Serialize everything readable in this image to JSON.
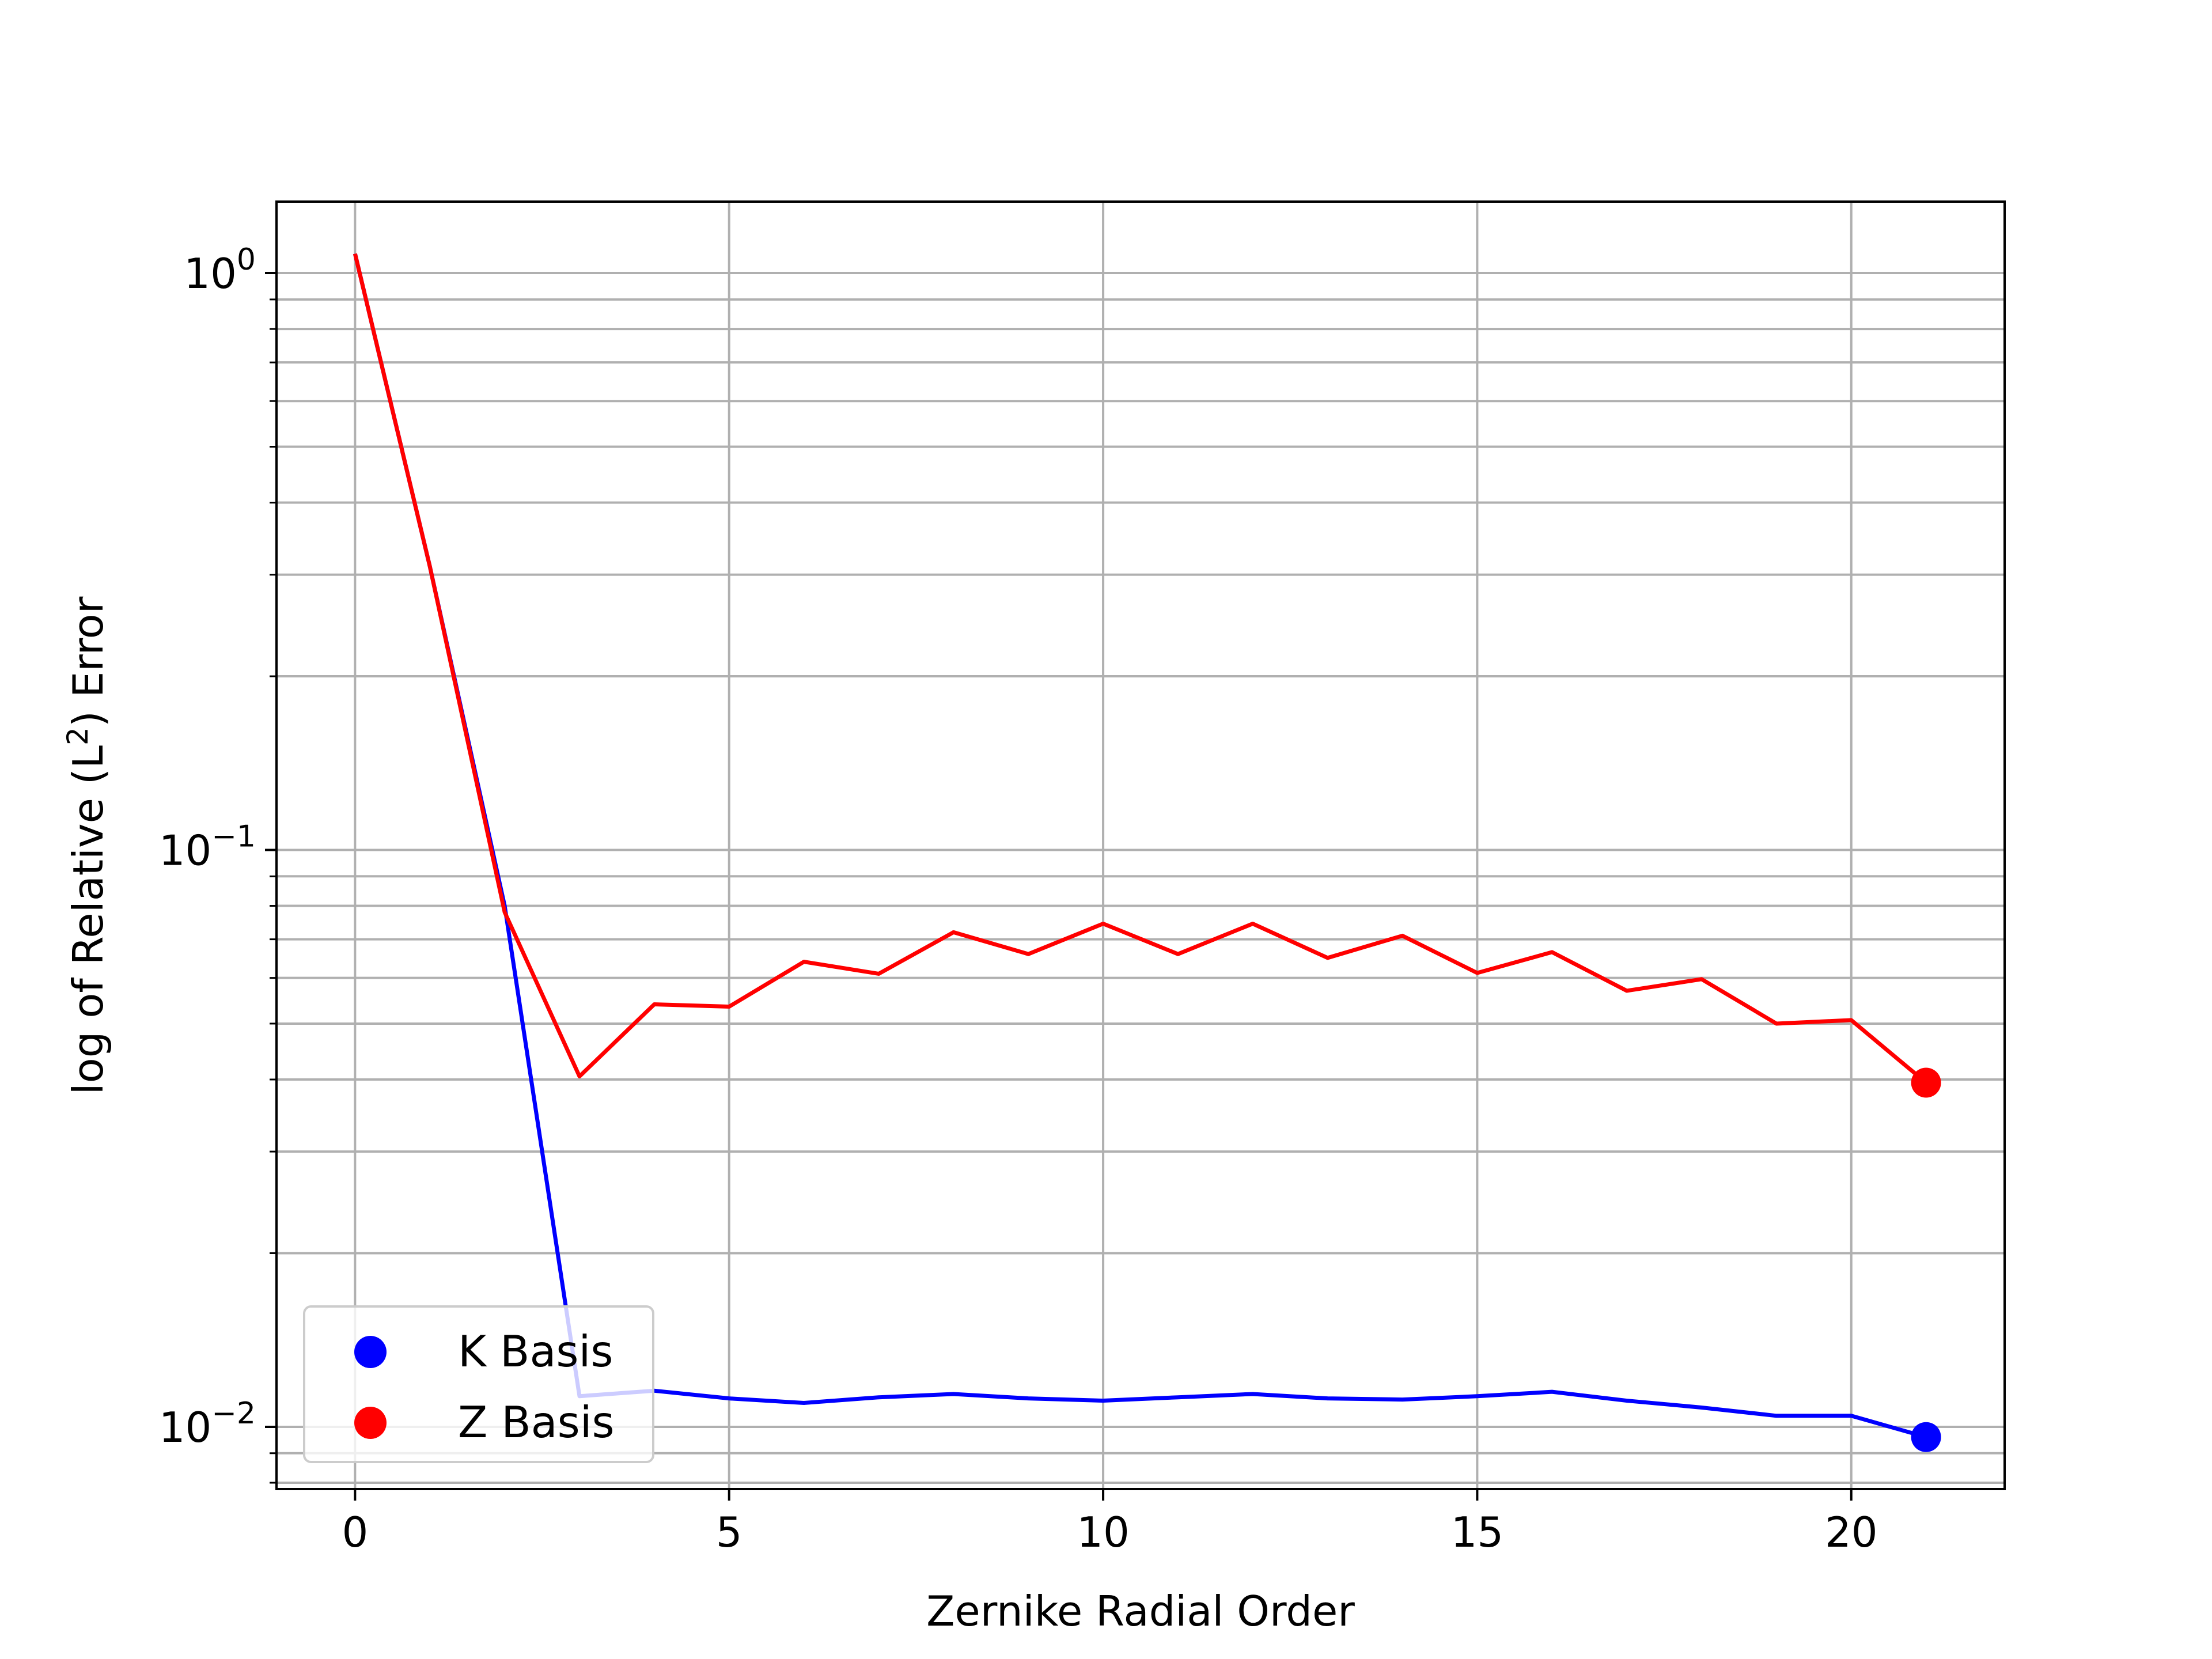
{
  "chart_data": {
    "type": "line",
    "title": "",
    "xlabel": "Zernike Radial Order",
    "ylabel_parts": {
      "prefix": "log of Relative (L",
      "superscript": "2",
      "suffix": ") Error"
    },
    "xlim": [
      -1.05,
      22.05
    ],
    "ylim": [
      0.0078,
      1.33
    ],
    "yscale": "log",
    "grid": true,
    "legend_placement": "lower-left",
    "x_ticks": [
      {
        "value": 0,
        "label": "0"
      },
      {
        "value": 5,
        "label": "5"
      },
      {
        "value": 10,
        "label": "10"
      },
      {
        "value": 15,
        "label": "15"
      },
      {
        "value": 20,
        "label": "20"
      }
    ],
    "y_ticks": [
      {
        "value": 1,
        "base": "10",
        "exp": "0"
      },
      {
        "value": 0.1,
        "base": "10",
        "exp": "−1"
      },
      {
        "value": 0.01,
        "base": "10",
        "exp": "−2"
      }
    ],
    "x": [
      0,
      1,
      2,
      3,
      4,
      5,
      6,
      7,
      8,
      9,
      10,
      11,
      12,
      13,
      14,
      15,
      16,
      17,
      18,
      19,
      20,
      21
    ],
    "series": [
      {
        "name": "K Basis",
        "color": "#0000ff",
        "values": [
          1.08,
          0.31,
          0.08,
          0.0113,
          0.01155,
          0.0112,
          0.011,
          0.01125,
          0.0114,
          0.0112,
          0.0111,
          0.01125,
          0.0114,
          0.0112,
          0.01115,
          0.0113,
          0.0115,
          0.0111,
          0.0108,
          0.01045,
          0.01045,
          0.0096
        ]
      },
      {
        "name": "Z Basis",
        "color": "#ff0000",
        "values": [
          1.08,
          0.31,
          0.078,
          0.0405,
          0.054,
          0.0535,
          0.064,
          0.061,
          0.072,
          0.066,
          0.0745,
          0.066,
          0.0745,
          0.065,
          0.071,
          0.0612,
          0.0665,
          0.057,
          0.0597,
          0.05,
          0.0507,
          0.0395
        ]
      }
    ]
  }
}
